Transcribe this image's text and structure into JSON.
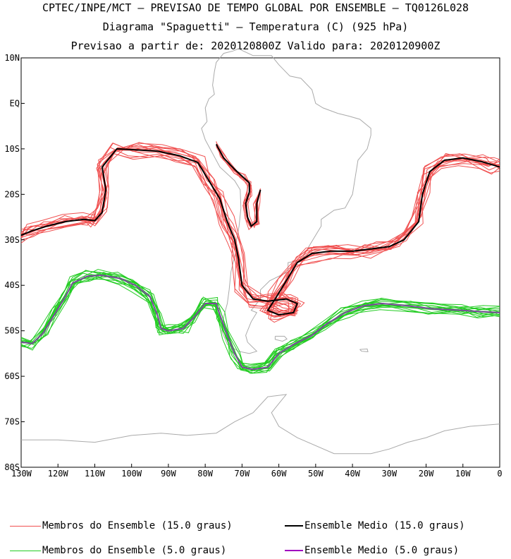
{
  "titles": {
    "line1": "CPTEC/INPE/MCT – PREVISAO DE TEMPO GLOBAL POR ENSEMBLE – TQ0126L028",
    "line2": "Diagrama \"Spaguetti\" – Temperatura (C) (925 hPa)",
    "line3": "Previsao a partir de: 2020120800Z  Valido para: 2020120900Z"
  },
  "axes": {
    "lat_labels": [
      "10N",
      "EQ",
      "10S",
      "20S",
      "30S",
      "40S",
      "50S",
      "60S",
      "70S",
      "80S"
    ],
    "lat_values": [
      10,
      0,
      -10,
      -20,
      -30,
      -40,
      -50,
      -60,
      -70,
      -80
    ],
    "lon_labels": [
      "130W",
      "120W",
      "110W",
      "100W",
      "90W",
      "80W",
      "70W",
      "60W",
      "50W",
      "40W",
      "30W",
      "20W",
      "10W",
      "0"
    ],
    "lon_values": [
      -130,
      -120,
      -110,
      -100,
      -90,
      -80,
      -70,
      -60,
      -50,
      -40,
      -30,
      -20,
      -10,
      0
    ],
    "lon_range": [
      -130,
      0
    ],
    "lat_range": [
      -80,
      10
    ]
  },
  "colors": {
    "members_15": "#f05050",
    "mean_15": "#000000",
    "members_5": "#22cc22",
    "mean_5": "#7a4a9a",
    "coast": "#aaaaaa"
  },
  "legend": {
    "members_15": "Membros do Ensemble (15.0 graus)",
    "mean_15": "Ensemble Medio (15.0 graus)",
    "members_5": "Membros do Ensemble (5.0 graus)",
    "mean_5": "Ensemble Medio (5.0 graus)"
  },
  "contours": {
    "iso15_main": [
      [
        -130,
        -29
      ],
      [
        -127,
        -28
      ],
      [
        -123,
        -27
      ],
      [
        -118,
        -26
      ],
      [
        -113,
        -25.5
      ],
      [
        -110,
        -25.8
      ],
      [
        -108,
        -24
      ],
      [
        -107,
        -19
      ],
      [
        -108,
        -14
      ],
      [
        -104,
        -10
      ],
      [
        -99,
        -10.2
      ],
      [
        -93,
        -10.5
      ],
      [
        -87,
        -11.5
      ],
      [
        -82,
        -13
      ],
      [
        -79,
        -17
      ],
      [
        -76,
        -21
      ],
      [
        -74,
        -26
      ],
      [
        -72,
        -30
      ],
      [
        -71,
        -34
      ],
      [
        -70,
        -40
      ],
      [
        -67,
        -43
      ],
      [
        -63,
        -43.5
      ],
      [
        -58,
        -43
      ],
      [
        -55,
        -44
      ],
      [
        -56,
        -46
      ],
      [
        -60,
        -46.5
      ],
      [
        -63,
        -45.5
      ],
      [
        -61,
        -43
      ],
      [
        -58,
        -39
      ],
      [
        -55,
        -35
      ],
      [
        -51,
        -33
      ],
      [
        -46,
        -32.5
      ],
      [
        -40,
        -32.5
      ],
      [
        -35,
        -32
      ],
      [
        -30,
        -31.5
      ],
      [
        -26,
        -30
      ],
      [
        -22,
        -26
      ],
      [
        -21,
        -20
      ],
      [
        -19,
        -15
      ],
      [
        -15,
        -12.5
      ],
      [
        -10,
        -12
      ],
      [
        -5,
        -12.8
      ],
      [
        -2,
        -13.5
      ],
      [
        0,
        -14
      ]
    ],
    "iso15_andes": [
      [
        -77,
        -9
      ],
      [
        -75,
        -12
      ],
      [
        -72,
        -14.5
      ],
      [
        -70,
        -16
      ],
      [
        -68,
        -17.5
      ],
      [
        -68,
        -19.5
      ],
      [
        -69,
        -22
      ],
      [
        -68.5,
        -25
      ],
      [
        -67.5,
        -27
      ],
      [
        -66,
        -26
      ],
      [
        -66,
        -22
      ],
      [
        -65,
        -19
      ]
    ],
    "iso5_main": [
      [
        -130,
        -52.5
      ],
      [
        -127,
        -52.8
      ],
      [
        -124,
        -50.5
      ],
      [
        -121,
        -46.5
      ],
      [
        -118,
        -42.5
      ],
      [
        -116,
        -39.5
      ],
      [
        -112,
        -38
      ],
      [
        -108,
        -37.8
      ],
      [
        -103,
        -38.5
      ],
      [
        -99,
        -40
      ],
      [
        -95,
        -42.5
      ],
      [
        -93,
        -46.5
      ],
      [
        -92,
        -49.5
      ],
      [
        -90,
        -50
      ],
      [
        -86,
        -49.5
      ],
      [
        -83,
        -47
      ],
      [
        -80,
        -44
      ],
      [
        -77,
        -44
      ],
      [
        -76,
        -46.5
      ],
      [
        -74,
        -51
      ],
      [
        -72,
        -55
      ],
      [
        -70,
        -58
      ],
      [
        -67,
        -58.5
      ],
      [
        -63,
        -58
      ],
      [
        -60,
        -55
      ],
      [
        -56,
        -53
      ],
      [
        -51,
        -51
      ],
      [
        -47,
        -48.5
      ],
      [
        -42,
        -46
      ],
      [
        -37,
        -44.5
      ],
      [
        -32,
        -44
      ],
      [
        -25,
        -44.5
      ],
      [
        -18,
        -45.2
      ],
      [
        -10,
        -45.5
      ],
      [
        -5,
        -45.8
      ],
      [
        0,
        -46
      ]
    ]
  },
  "coastlines": [
    [
      [
        -79.5,
        -4
      ],
      [
        -81,
        -5.5
      ],
      [
        -80,
        -8
      ],
      [
        -78,
        -11
      ],
      [
        -76,
        -14
      ],
      [
        -72,
        -17
      ],
      [
        -70.5,
        -19
      ],
      [
        -70.3,
        -23
      ],
      [
        -70.8,
        -27
      ],
      [
        -71.5,
        -30
      ],
      [
        -71.8,
        -33
      ],
      [
        -73,
        -37
      ],
      [
        -73.5,
        -41
      ],
      [
        -74,
        -44
      ],
      [
        -75,
        -47
      ],
      [
        -75.5,
        -50
      ],
      [
        -74,
        -53
      ],
      [
        -71,
        -54.5
      ],
      [
        -68,
        -55
      ],
      [
        -66,
        -54.5
      ],
      [
        -68.5,
        -52.5
      ],
      [
        -69,
        -51
      ],
      [
        -67.5,
        -48
      ],
      [
        -66,
        -46
      ],
      [
        -67.5,
        -45.5
      ],
      [
        -65,
        -43
      ],
      [
        -65,
        -41
      ],
      [
        -62.5,
        -39
      ],
      [
        -57.5,
        -37
      ],
      [
        -57.5,
        -35
      ],
      [
        -54,
        -34.5
      ],
      [
        -51.5,
        -31
      ],
      [
        -48.5,
        -27
      ],
      [
        -48.5,
        -25.5
      ],
      [
        -45,
        -23.5
      ],
      [
        -42,
        -23
      ],
      [
        -40,
        -20
      ],
      [
        -39,
        -15
      ],
      [
        -38.5,
        -12.5
      ],
      [
        -36,
        -10
      ],
      [
        -35,
        -7
      ],
      [
        -35,
        -5.5
      ],
      [
        -38,
        -3.5
      ],
      [
        -41,
        -2.8
      ],
      [
        -44,
        -2.2
      ],
      [
        -48,
        -1
      ],
      [
        -50,
        0
      ],
      [
        -51,
        3
      ],
      [
        -54,
        5.5
      ],
      [
        -57,
        6
      ],
      [
        -60,
        8.5
      ],
      [
        -62,
        10.5
      ],
      [
        -64,
        10.5
      ],
      [
        -67,
        10.5
      ],
      [
        -71,
        12
      ],
      [
        -72.5,
        11.5
      ],
      [
        -75,
        11
      ],
      [
        -77,
        9
      ],
      [
        -77.5,
        7
      ],
      [
        -78,
        4
      ],
      [
        -77.5,
        2
      ],
      [
        -79,
        1
      ],
      [
        -80,
        -1
      ],
      [
        -79.5,
        -4
      ]
    ],
    [
      [
        -130,
        -74
      ],
      [
        -120,
        -74
      ],
      [
        -110,
        -74.5
      ],
      [
        -100,
        -73
      ],
      [
        -92,
        -72.5
      ],
      [
        -85,
        -73
      ],
      [
        -77,
        -72.5
      ],
      [
        -72,
        -70
      ],
      [
        -67,
        -68
      ],
      [
        -63,
        -64.5
      ],
      [
        -58,
        -64
      ],
      [
        -60,
        -66
      ],
      [
        -62,
        -68
      ],
      [
        -60,
        -71
      ],
      [
        -55,
        -73.5
      ],
      [
        -45,
        -77
      ],
      [
        -35,
        -77
      ],
      [
        -30,
        -76
      ],
      [
        -25,
        -74.5
      ],
      [
        -20,
        -73.5
      ],
      [
        -15,
        -72
      ],
      [
        -8,
        -71
      ],
      [
        0,
        -70.5
      ]
    ],
    [
      [
        -61,
        -51.2
      ],
      [
        -58.5,
        -51.2
      ],
      [
        -57.8,
        -51.8
      ],
      [
        -59,
        -52.3
      ],
      [
        -61,
        -51.9
      ],
      [
        -61,
        -51.2
      ]
    ],
    [
      [
        -38,
        -54.1
      ],
      [
        -36,
        -54
      ],
      [
        -35.8,
        -54.6
      ],
      [
        -37.5,
        -54.5
      ],
      [
        -38,
        -54.1
      ]
    ]
  ]
}
